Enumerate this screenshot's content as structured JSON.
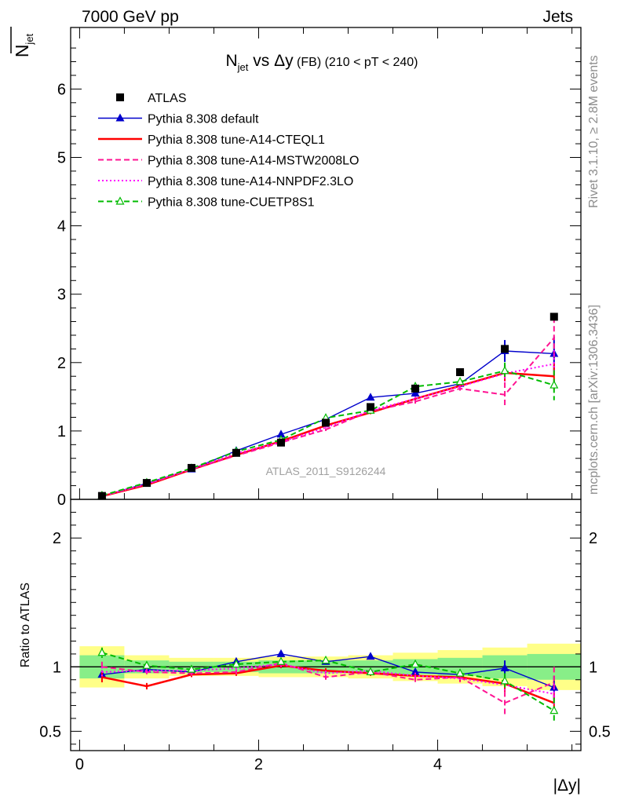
{
  "header": {
    "left": "7000 GeV pp",
    "right": "Jets"
  },
  "side_text": {
    "rivet": "Rivet 3.1.10, ≥ 2.8M events",
    "mcplots": "mcplots.cern.ch [arXiv:1306.3436]"
  },
  "watermark": "ATLAS_2011_S9126244",
  "plot_title": {
    "main": "N",
    "sub": "jet",
    "rest": " vs Δy",
    "small": " (FB) (210 < pT < 240)"
  },
  "axis": {
    "ylabel_main": "N",
    "ylabel_sub": "jet",
    "ratio_ylabel": "Ratio to ATLAS",
    "xlabel": "|Δy|"
  },
  "chart_data": {
    "type": "line",
    "x_edges": [
      0,
      0.5,
      1,
      1.5,
      2,
      2.5,
      3,
      3.5,
      4,
      4.5,
      5,
      5.6
    ],
    "x_centers": [
      0.25,
      0.75,
      1.25,
      1.75,
      2.25,
      2.75,
      3.25,
      3.75,
      4.25,
      4.75,
      5.3
    ],
    "xlim": [
      -0.1,
      5.6
    ],
    "main_ylim": [
      0,
      6.9
    ],
    "ratio_ylim": [
      0.35,
      2.3
    ],
    "x_ticks": [
      0,
      2,
      4
    ],
    "main_y_ticks": [
      0,
      1,
      2,
      3,
      4,
      5,
      6
    ],
    "ratio_y_ticks": [
      0.5,
      1,
      2
    ],
    "data": {
      "name": "ATLAS",
      "values": [
        0.05,
        0.24,
        0.46,
        0.68,
        0.83,
        1.12,
        1.35,
        1.62,
        1.86,
        2.2,
        2.67
      ],
      "ratio_band_inner": [
        0.09,
        0.05,
        0.04,
        0.04,
        0.05,
        0.05,
        0.05,
        0.06,
        0.07,
        0.09,
        0.1
      ],
      "ratio_band_outer": [
        0.16,
        0.09,
        0.07,
        0.07,
        0.08,
        0.08,
        0.09,
        0.11,
        0.13,
        0.15,
        0.18
      ]
    },
    "series": [
      {
        "name": "Pythia 8.308 default",
        "color": "#0000cc",
        "style": "solid",
        "marker": "triangle-filled",
        "values": [
          0.047,
          0.235,
          0.44,
          0.71,
          0.95,
          1.17,
          1.49,
          1.55,
          1.69,
          2.17,
          2.13
        ],
        "errors": [
          0.003,
          0.006,
          0.01,
          0.012,
          0.015,
          0.02,
          0.025,
          0.03,
          0.04,
          0.16,
          0.25
        ],
        "ratio": [
          0.94,
          0.98,
          0.96,
          1.04,
          1.1,
          1.04,
          1.08,
          0.96,
          0.94,
          0.99,
          0.84
        ],
        "ratio_errors": [
          0.02,
          0.02,
          0.02,
          0.015,
          0.015,
          0.015,
          0.02,
          0.02,
          0.02,
          0.06,
          0.09
        ]
      },
      {
        "name": "Pythia 8.308 tune-A14-CTEQL1",
        "color": "#ff0000",
        "style": "solid",
        "marker": "none",
        "values": [
          0.046,
          0.21,
          0.435,
          0.65,
          0.85,
          1.08,
          1.27,
          1.47,
          1.66,
          1.85,
          1.8
        ],
        "errors": [
          0.003,
          0.006,
          0.01,
          0.012,
          0.015,
          0.02,
          0.025,
          0.03,
          0.05,
          0.12,
          0.2
        ],
        "ratio": [
          0.92,
          0.85,
          0.94,
          0.95,
          1.01,
          0.97,
          0.95,
          0.93,
          0.92,
          0.87,
          0.72
        ],
        "ratio_errors": [
          0.04,
          0.025,
          0.02,
          0.02,
          0.02,
          0.02,
          0.02,
          0.025,
          0.03,
          0.06,
          0.08
        ]
      },
      {
        "name": "Pythia 8.308 tune-A14-MSTW2008LO",
        "color": "#ff1493",
        "style": "dashed",
        "marker": "none",
        "values": [
          0.05,
          0.22,
          0.44,
          0.64,
          0.83,
          1.02,
          1.29,
          1.43,
          1.62,
          1.53,
          2.36
        ],
        "errors": [
          0.003,
          0.006,
          0.01,
          0.012,
          0.015,
          0.02,
          0.025,
          0.03,
          0.05,
          0.18,
          0.3
        ],
        "ratio": [
          1.0,
          0.96,
          0.95,
          0.96,
          1.03,
          0.92,
          0.96,
          0.9,
          0.92,
          0.72,
          0.88
        ],
        "ratio_errors": [
          0.04,
          0.025,
          0.02,
          0.02,
          0.02,
          0.02,
          0.02,
          0.025,
          0.04,
          0.09,
          0.12
        ]
      },
      {
        "name": "Pythia 8.308 tune-A14-NNPDF2.3LO",
        "color": "#ff00ff",
        "style": "dotted",
        "marker": "none",
        "values": [
          0.048,
          0.225,
          0.445,
          0.67,
          0.84,
          1.05,
          1.3,
          1.47,
          1.65,
          1.84,
          1.98
        ],
        "errors": [
          0.003,
          0.006,
          0.01,
          0.012,
          0.015,
          0.02,
          0.025,
          0.03,
          0.05,
          0.12,
          0.2
        ],
        "ratio": [
          0.96,
          0.97,
          0.97,
          0.99,
          1.02,
          0.95,
          0.97,
          0.93,
          0.91,
          0.86,
          0.79
        ],
        "ratio_errors": [
          0.04,
          0.025,
          0.02,
          0.02,
          0.02,
          0.02,
          0.02,
          0.025,
          0.03,
          0.06,
          0.08
        ]
      },
      {
        "name": "Pythia 8.308 tune-CUETP8S1",
        "color": "#00bb00",
        "style": "dashed",
        "marker": "triangle-open",
        "values": [
          0.055,
          0.245,
          0.455,
          0.7,
          0.87,
          1.19,
          1.3,
          1.65,
          1.72,
          1.88,
          1.67
        ],
        "errors": [
          0.003,
          0.006,
          0.01,
          0.012,
          0.015,
          0.02,
          0.025,
          0.03,
          0.05,
          0.12,
          0.22
        ],
        "ratio": [
          1.11,
          1.01,
          0.98,
          1.02,
          1.04,
          1.05,
          0.96,
          1.02,
          0.95,
          0.89,
          0.66
        ],
        "ratio_errors": [
          0.04,
          0.025,
          0.02,
          0.02,
          0.02,
          0.02,
          0.02,
          0.025,
          0.03,
          0.06,
          0.1
        ]
      }
    ]
  }
}
